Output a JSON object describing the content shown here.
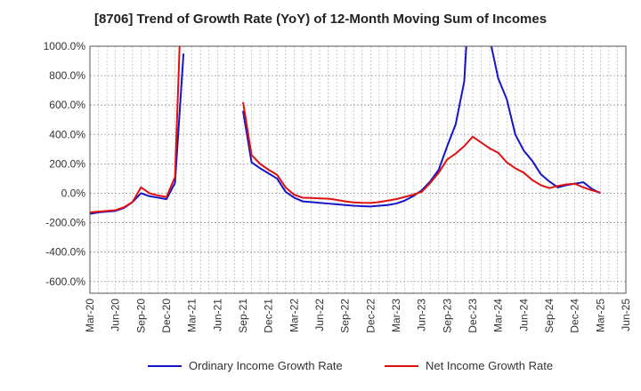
{
  "chart_data": {
    "type": "line",
    "title": "[8706]  Trend of Growth Rate (YoY) of 12-Month Moving Sum of Incomes",
    "xlabel": "",
    "ylabel": "",
    "ylim": [
      -680,
      1000
    ],
    "y_ticks": [
      "1000.0%",
      "800.0%",
      "600.0%",
      "400.0%",
      "200.0%",
      "0.0%",
      "-200.0%",
      "-400.0%",
      "-600.0%"
    ],
    "y_tick_values": [
      1000,
      800,
      600,
      400,
      200,
      0,
      -200,
      -400,
      -600
    ],
    "x_ticks": [
      "Mar-20",
      "Jun-20",
      "Sep-20",
      "Dec-20",
      "Mar-21",
      "Jun-21",
      "Sep-21",
      "Dec-21",
      "Mar-22",
      "Jun-22",
      "Sep-22",
      "Dec-22",
      "Mar-23",
      "Jun-23",
      "Sep-23",
      "Dec-23",
      "Mar-24",
      "Jun-24",
      "Sep-24",
      "Dec-24",
      "Mar-25",
      "Jun-25"
    ],
    "x_months": [
      "Mar-20",
      "Apr-20",
      "May-20",
      "Jun-20",
      "Jul-20",
      "Aug-20",
      "Sep-20",
      "Oct-20",
      "Nov-20",
      "Dec-20",
      "Jan-21",
      "Feb-21",
      "Mar-21",
      "Apr-21",
      "May-21",
      "Jun-21",
      "Jul-21",
      "Aug-21",
      "Sep-21",
      "Oct-21",
      "Nov-21",
      "Dec-21",
      "Jan-22",
      "Feb-22",
      "Mar-22",
      "Apr-22",
      "May-22",
      "Jun-22",
      "Jul-22",
      "Aug-22",
      "Sep-22",
      "Oct-22",
      "Nov-22",
      "Dec-22",
      "Jan-23",
      "Feb-23",
      "Mar-23",
      "Apr-23",
      "May-23",
      "Jun-23",
      "Jul-23",
      "Aug-23",
      "Sep-23",
      "Oct-23",
      "Nov-23",
      "Dec-23",
      "Jan-24",
      "Feb-24",
      "Mar-24",
      "Apr-24",
      "May-24",
      "Jun-24",
      "Jul-24",
      "Aug-24",
      "Sep-24",
      "Oct-24",
      "Nov-24",
      "Dec-24",
      "Jan-25",
      "Feb-25",
      "Mar-25"
    ],
    "grid": true,
    "legend_position": "bottom",
    "series": [
      {
        "name": "Ordinary Income Growth Rate",
        "color": "#1515c8",
        "values": [
          -140,
          -130,
          -125,
          -120,
          -100,
          -60,
          0,
          -20,
          -30,
          -40,
          70,
          950,
          null,
          null,
          null,
          null,
          null,
          null,
          560,
          210,
          170,
          135,
          100,
          10,
          -30,
          -55,
          -60,
          -65,
          -70,
          -75,
          -80,
          -85,
          -88,
          -90,
          -85,
          -80,
          -70,
          -50,
          -20,
          20,
          80,
          160,
          320,
          470,
          760,
          1750,
          1600,
          1050,
          780,
          640,
          400,
          290,
          220,
          130,
          80,
          40,
          55,
          65,
          75,
          30,
          0
        ]
      },
      {
        "name": "Net Income Growth Rate",
        "color": "#e01010",
        "values": [
          -130,
          -125,
          -120,
          -115,
          -95,
          -60,
          40,
          0,
          -15,
          -25,
          110,
          1750,
          null,
          null,
          null,
          null,
          null,
          null,
          620,
          260,
          200,
          160,
          125,
          40,
          -10,
          -30,
          -32,
          -35,
          -37,
          -45,
          -55,
          -62,
          -65,
          -66,
          -60,
          -50,
          -40,
          -25,
          -10,
          10,
          70,
          140,
          230,
          270,
          320,
          385,
          345,
          305,
          275,
          210,
          170,
          140,
          90,
          55,
          35,
          50,
          60,
          65,
          40,
          20,
          5
        ]
      }
    ]
  }
}
